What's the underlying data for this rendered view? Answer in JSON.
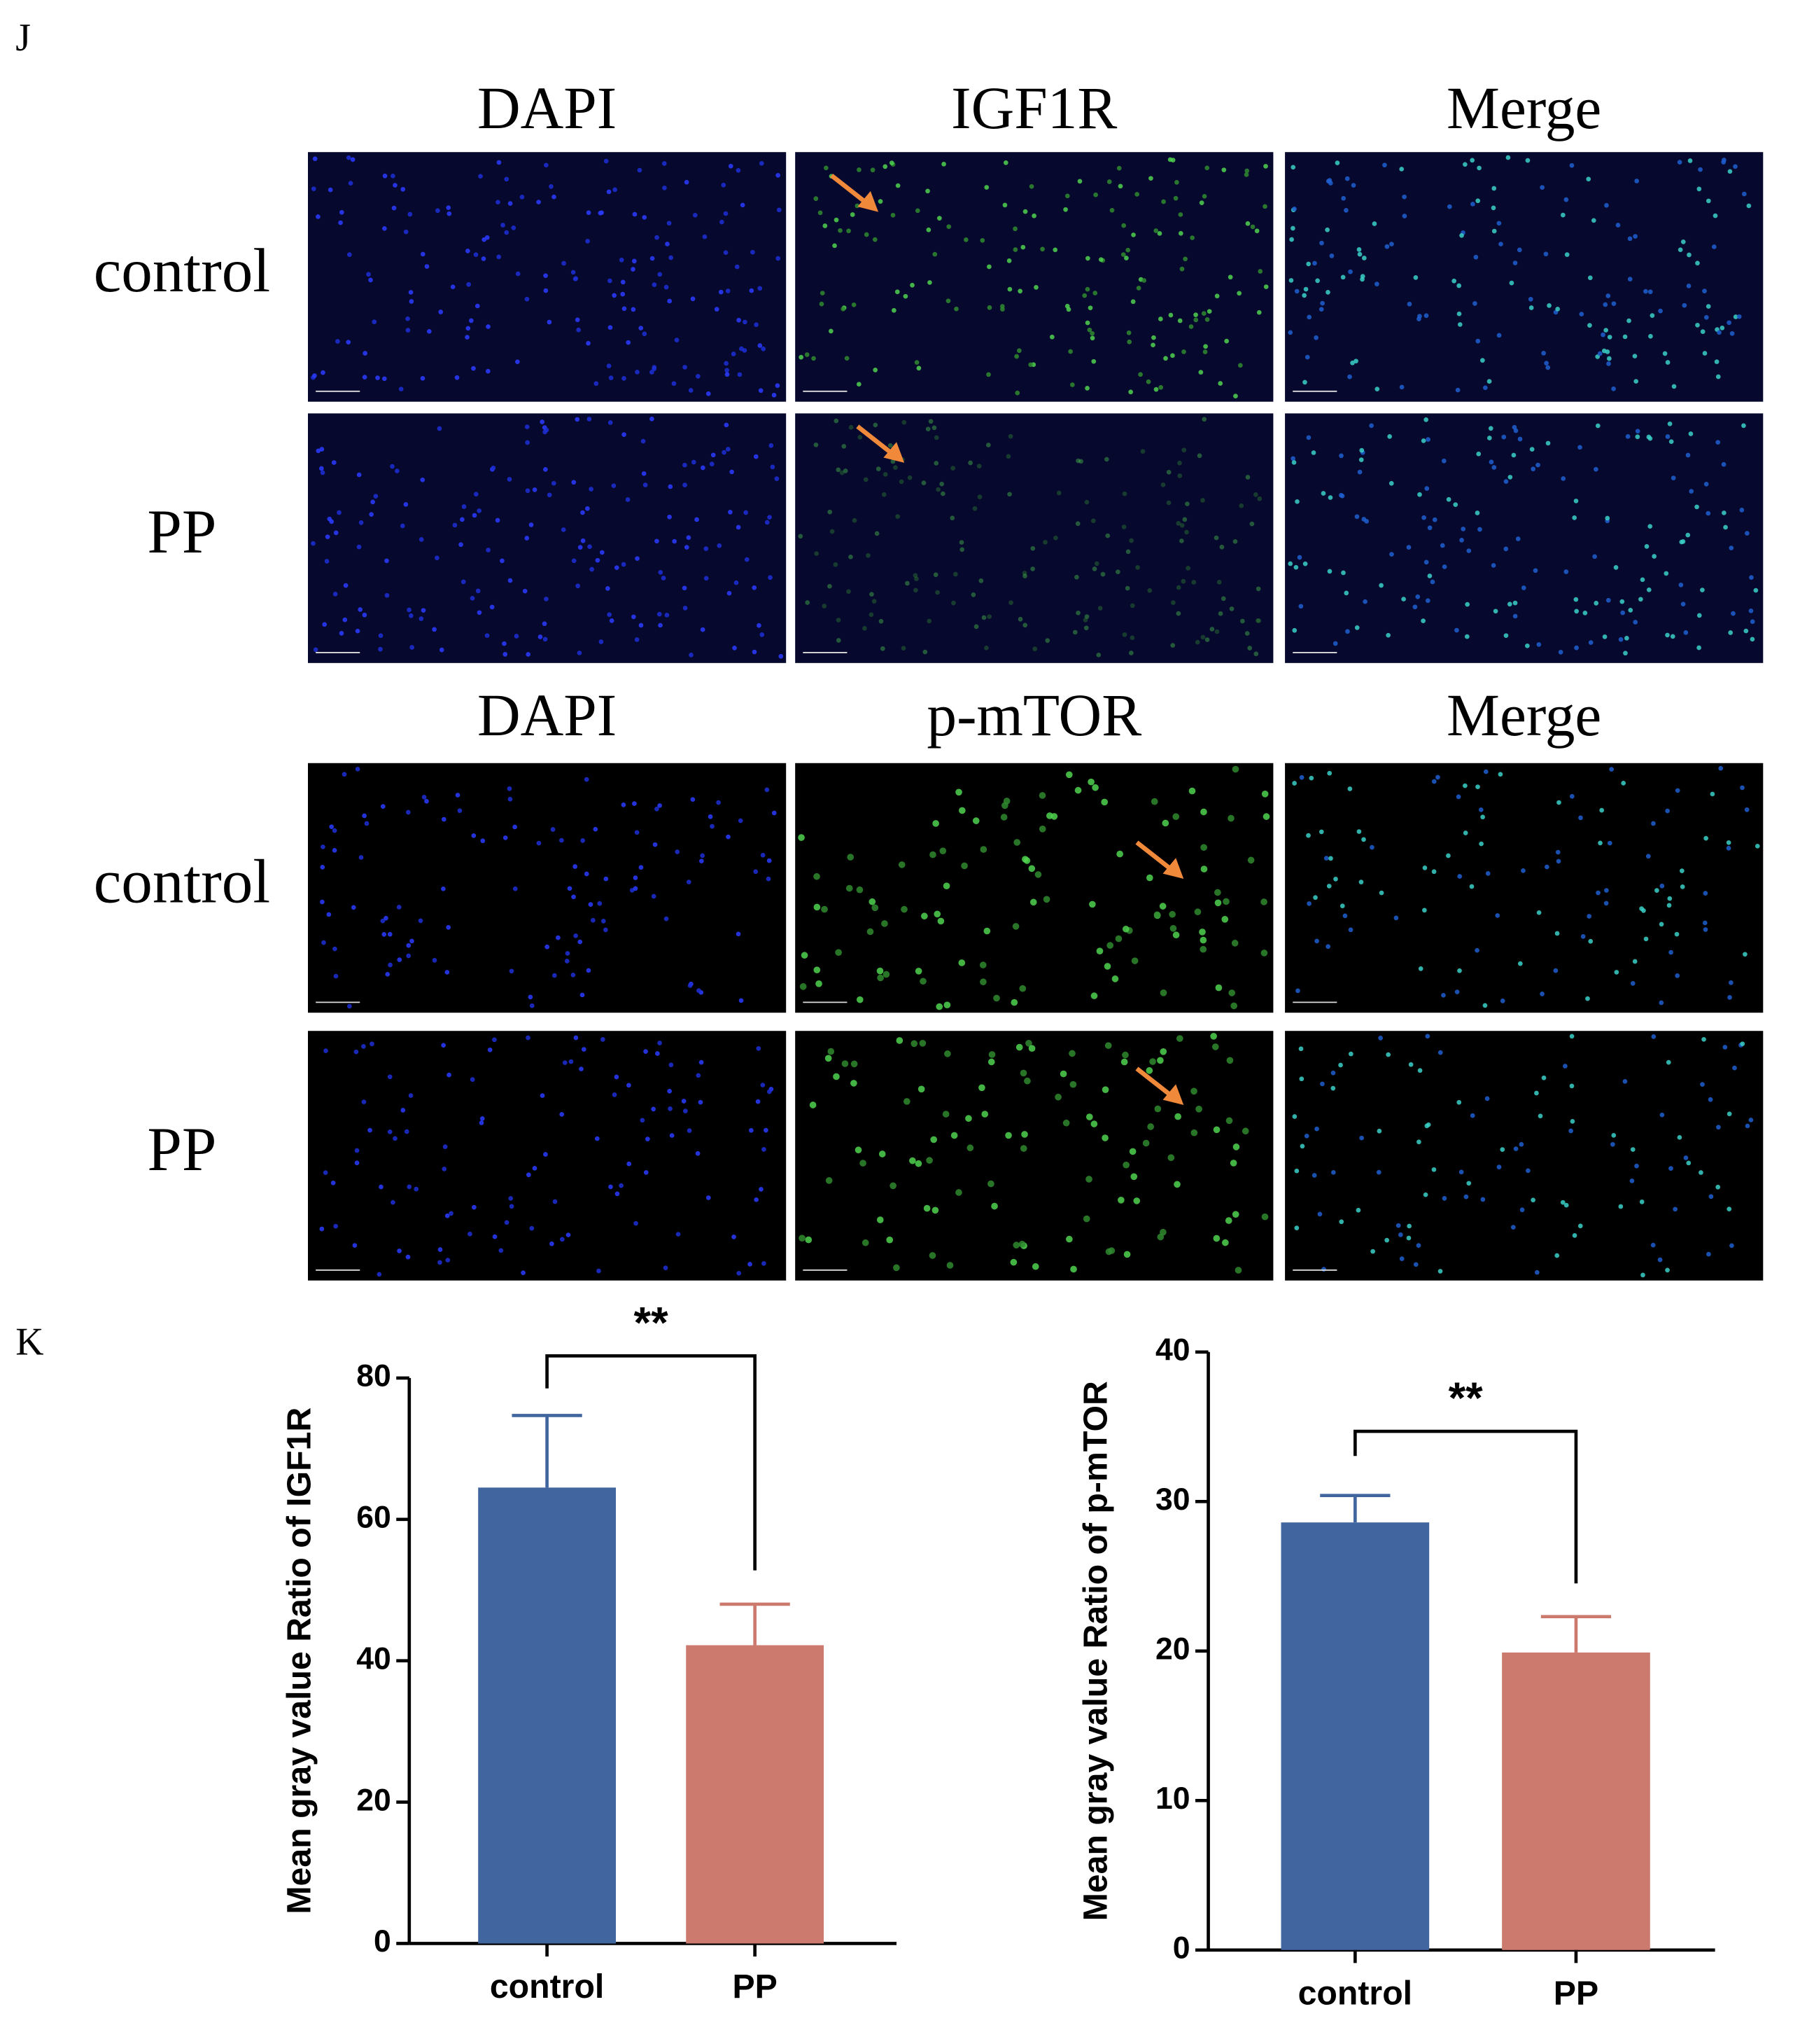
{
  "figure": {
    "panel_j": {
      "label": "J",
      "groups": [
        {
          "headers": [
            "DAPI",
            "IGF1R",
            "Merge"
          ],
          "rows": [
            "control",
            "PP"
          ]
        },
        {
          "headers": [
            "DAPI",
            "p-mTOR",
            "Merge"
          ],
          "rows": [
            "control",
            "PP"
          ]
        }
      ]
    },
    "panel_k": {
      "label": "K"
    }
  },
  "chart_data": [
    {
      "type": "bar",
      "y_label": "Mean gray value Ratio of IGF1R",
      "categories": [
        "control",
        "PP"
      ],
      "values": [
        64.5,
        42.2
      ],
      "errors": [
        10.2,
        5.8
      ],
      "colors": [
        "#41659f",
        "#cc7a6e"
      ],
      "ylim": [
        0,
        80
      ],
      "yticks": [
        0,
        20,
        40,
        60,
        80
      ],
      "annotation": "**"
    },
    {
      "type": "bar",
      "y_label": "Mean gray value Ratio of p-mTOR",
      "categories": [
        "control",
        "PP"
      ],
      "values": [
        28.6,
        19.9
      ],
      "errors": [
        1.8,
        2.4
      ],
      "colors": [
        "#41659f",
        "#cc7a6e"
      ],
      "ylim": [
        0,
        40
      ],
      "yticks": [
        0,
        10,
        20,
        30,
        40
      ],
      "annotation": "**"
    }
  ]
}
